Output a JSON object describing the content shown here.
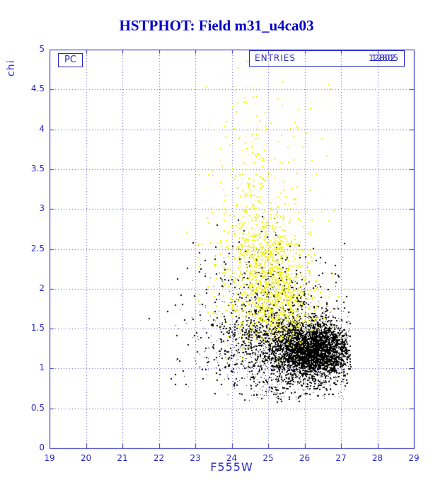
{
  "title": "HSTPHOT: Field m31_u4ca03",
  "legend": {
    "label": "PC"
  },
  "entries": {
    "label": "ENTRIES",
    "values": [
      "12805",
      "12802"
    ]
  },
  "colors": {
    "axis_blue": "#2a2ac8",
    "grid_blue": "#4040d0",
    "title_blue": "#0000cc",
    "series_black": "#000000",
    "series_yellow": "#f2f200"
  },
  "chart_data": {
    "type": "scatter",
    "title": "HSTPHOT: Field m31_u4ca03",
    "xlabel": "F555W",
    "ylabel": "chi",
    "xlim": [
      19,
      29
    ],
    "ylim": [
      0,
      5
    ],
    "xticks": [
      19,
      20,
      21,
      22,
      23,
      24,
      25,
      26,
      27,
      28,
      29
    ],
    "yticks": [
      0,
      0.5,
      1,
      1.5,
      2,
      2.5,
      3,
      3.5,
      4,
      4.5,
      5
    ],
    "grid": "dotted",
    "legend_position": "top-left",
    "series": [
      {
        "name": "series-black",
        "color": "#000000",
        "marker_px": 2,
        "xmax": 27.25,
        "ymin": 0.55,
        "clusters": [
          {
            "type": "gauss",
            "n": 3200,
            "cx": 26.25,
            "cy": 1.22,
            "sx": 0.5,
            "sy": 0.17
          },
          {
            "type": "gauss",
            "n": 1600,
            "cx": 25.4,
            "cy": 1.3,
            "sx": 0.95,
            "sy": 0.28
          },
          {
            "type": "gauss",
            "n": 520,
            "cx": 25.1,
            "cy": 1.7,
            "sx": 0.85,
            "sy": 0.45
          },
          {
            "type": "uniform",
            "n": 150,
            "x0": 22.3,
            "x1": 27.1,
            "y0": 0.62,
            "y1": 2.6
          },
          {
            "type": "uniform",
            "n": 120,
            "x0": 24.5,
            "x1": 27.1,
            "y0": 0.62,
            "y1": 0.95
          }
        ]
      },
      {
        "name": "series-yellow",
        "color": "#f2f200",
        "marker_px": 2,
        "xmax": 27.05,
        "ymin": 1.05,
        "clusters": [
          {
            "type": "gauss",
            "n": 1150,
            "cx": 24.95,
            "cy": 2.15,
            "sx": 0.55,
            "sy": 0.42
          },
          {
            "type": "gauss",
            "n": 560,
            "cx": 25.35,
            "cy": 1.8,
            "sx": 0.6,
            "sy": 0.28
          },
          {
            "type": "plume",
            "n": 430,
            "cx": 24.55,
            "sx": 0.45,
            "y0": 2.4,
            "y1": 5.0,
            "decay": 1.1
          },
          {
            "type": "uniform",
            "n": 180,
            "x0": 23.0,
            "x1": 26.8,
            "y0": 1.5,
            "y1": 4.6
          }
        ]
      }
    ]
  }
}
